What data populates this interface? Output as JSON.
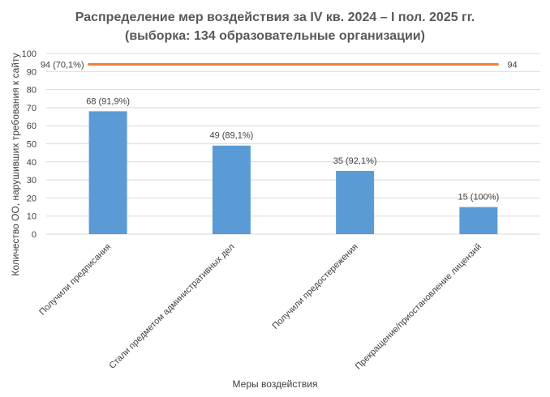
{
  "chart_data": {
    "type": "bar",
    "title_line1": "Распределение мер воздействия за IV кв. 2024 – I пол. 2025 гг.",
    "title_line2": "(выборка: 134 образовательные организации)",
    "xlabel": "Меры воздействия",
    "ylabel": "Количество ОО, нарушивших требования к сайту",
    "ylim": [
      0,
      100
    ],
    "yticks": [
      0,
      10,
      20,
      30,
      40,
      50,
      60,
      70,
      80,
      90,
      100
    ],
    "grid": true,
    "categories": [
      "Получили предписания",
      "Стали предметом административных дел",
      "Получили предостережения",
      "Прекращение/приостановление лицензий"
    ],
    "values": [
      68,
      49,
      35,
      15
    ],
    "data_labels": [
      "68 (91,9%)",
      "49 (89,1%)",
      "35 (92,1%)",
      "15 (100%)"
    ],
    "bar_color": "#5B9BD5",
    "reference_line": {
      "value": 94,
      "label_left": "94 (70,1%)",
      "label_right": "94",
      "color": "#ED7D31"
    }
  }
}
